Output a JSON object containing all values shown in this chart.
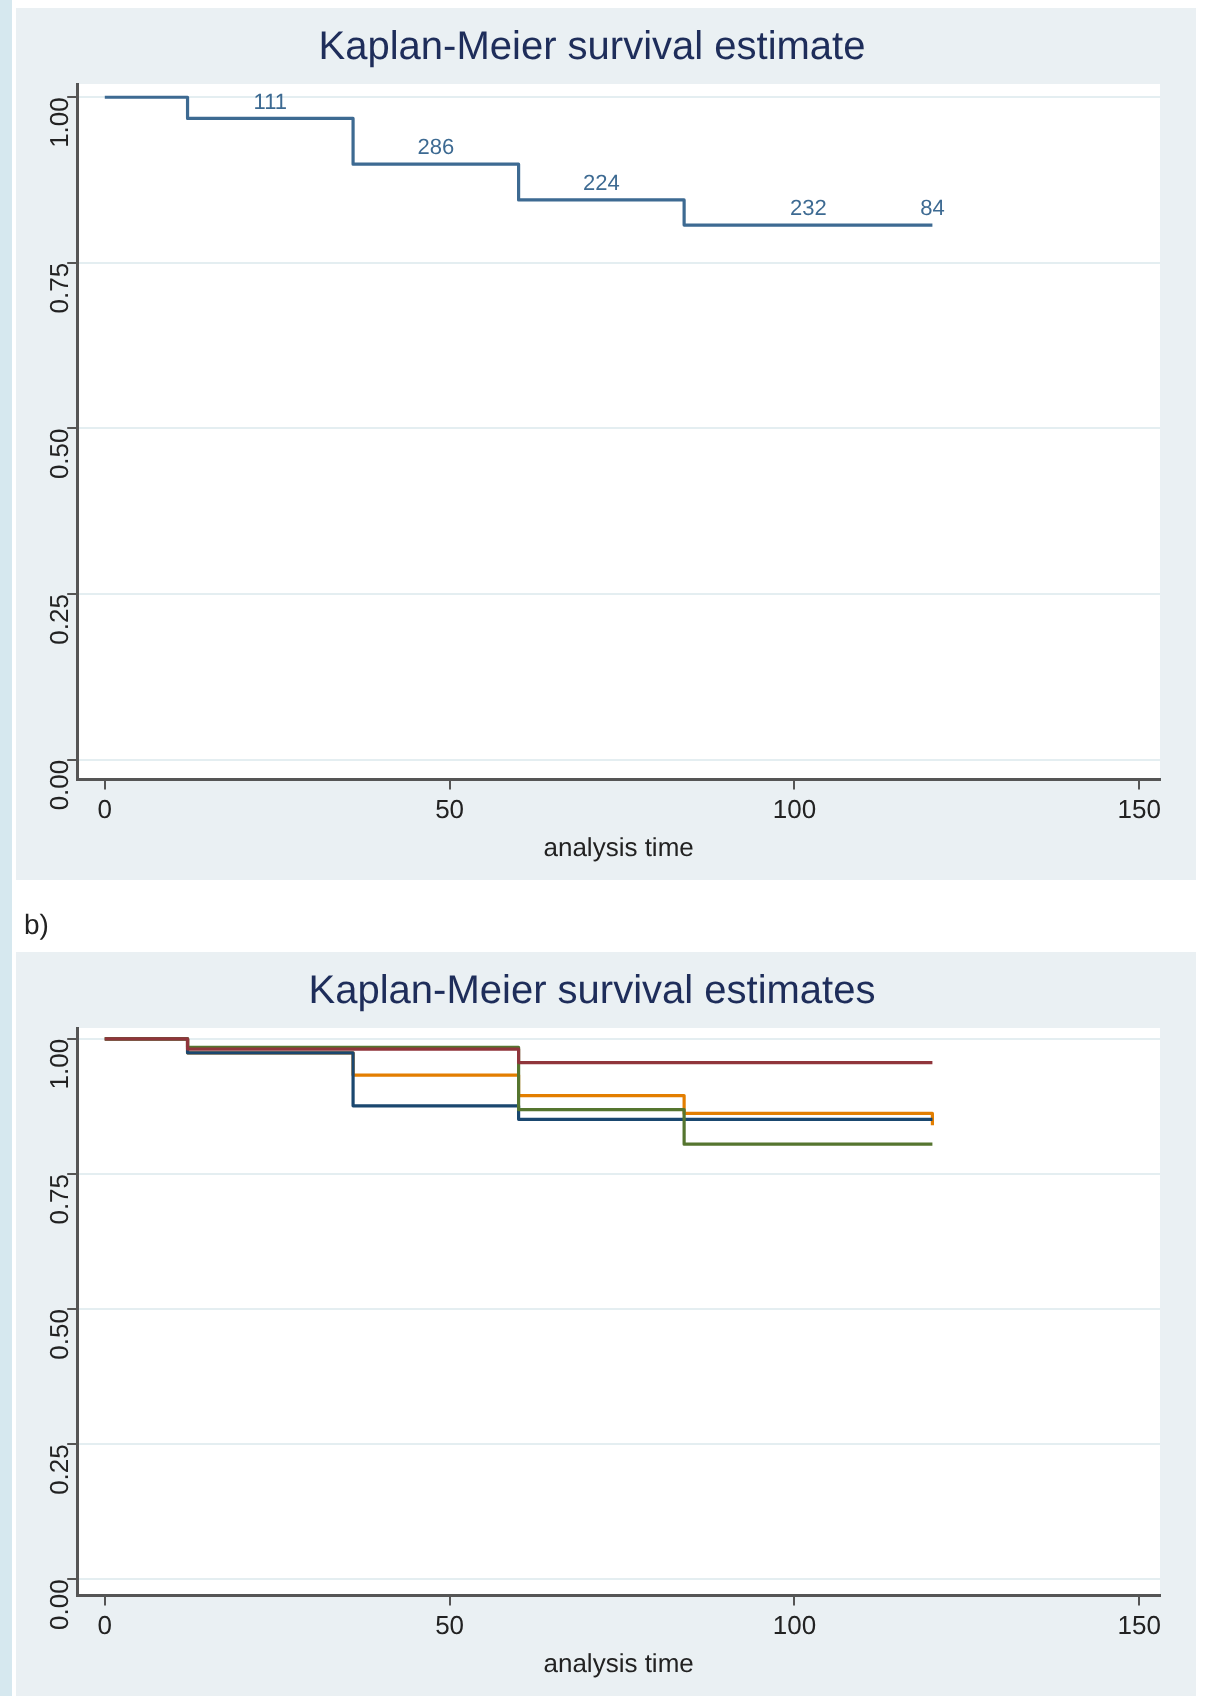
{
  "chart_data": [
    {
      "type": "step",
      "title": "Kaplan-Meier survival estimate",
      "xlabel": "analysis time",
      "x": [
        0,
        12,
        36,
        60,
        84,
        120
      ],
      "series": [
        {
          "color": "#3d6a92",
          "values": [
            1,
            0.968,
            0.899,
            0.845,
            0.807,
            0.807
          ]
        }
      ],
      "annotations": [
        {
          "text": "111",
          "x": 24,
          "y": 0.968
        },
        {
          "text": "286",
          "x": 48,
          "y": 0.899
        },
        {
          "text": "224",
          "x": 72,
          "y": 0.845
        },
        {
          "text": "232",
          "x": 102,
          "y": 0.807
        },
        {
          "text": "84",
          "x": 120,
          "y": 0.807
        }
      ],
      "xlim": [
        -4,
        153
      ],
      "ylim": [
        -0.03,
        1.02
      ],
      "xticks": [
        0,
        50,
        100,
        150
      ],
      "yticks": [
        {
          "value": 0,
          "label": "0.00"
        },
        {
          "value": 0.25,
          "label": "0.25"
        },
        {
          "value": 0.5,
          "label": "0.50"
        },
        {
          "value": 0.75,
          "label": "0.75"
        },
        {
          "value": 1,
          "label": "1.00"
        }
      ],
      "grid": "y",
      "legend": false,
      "marker": "none"
    },
    {
      "type": "step",
      "title": "Kaplan-Meier survival estimates",
      "xlabel": "analysis time",
      "x": [
        0,
        12,
        36,
        60,
        84,
        120
      ],
      "series": [
        {
          "color": "#90353b",
          "values": [
            1,
            0.981,
            0.981,
            0.956,
            0.956,
            0.956
          ]
        },
        {
          "color": "#55752f",
          "values": [
            1,
            0.984,
            0.984,
            0.869,
            0.805,
            0.805
          ]
        },
        {
          "color": "#1a476f",
          "values": [
            1,
            0.974,
            0.876,
            0.851,
            0.851,
            0.851
          ]
        },
        {
          "color": "#e37e00",
          "values": [
            1,
            0.974,
            0.933,
            0.895,
            0.862,
            0.84
          ]
        }
      ],
      "annotations": [
        "b)"
      ],
      "xlim": [
        -4,
        153
      ],
      "ylim": [
        -0.03,
        1.02
      ],
      "xticks": [
        0,
        50,
        100,
        150
      ],
      "yticks": [
        {
          "value": 0,
          "label": "0.00"
        },
        {
          "value": 0.25,
          "label": "0.25"
        },
        {
          "value": 0.5,
          "label": "0.50"
        },
        {
          "value": 0.75,
          "label": "0.75"
        },
        {
          "value": 1,
          "label": "1.00"
        }
      ],
      "grid": "y",
      "legend": false,
      "marker": "none"
    }
  ]
}
